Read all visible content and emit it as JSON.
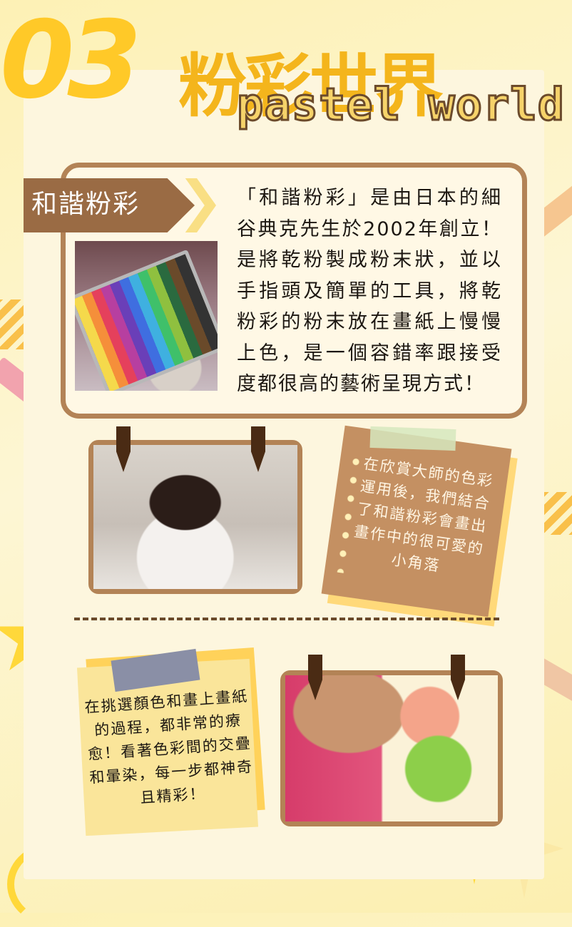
{
  "header": {
    "number": "03",
    "title_cjk": "粉彩世界",
    "title_en": "pastel world"
  },
  "intro": {
    "tag": "和諧粉彩",
    "text": "「和諧粉彩」是由日本的細谷典克先生於2002年創立！是將乾粉製成粉末狀，並以手指頭及簡單的工具，將乾粉彩的粉末放在畫紙上慢慢上色，是一個容錯率跟接受度都很高的藝術呈現方式！"
  },
  "note1": {
    "text": "在欣賞大師的色彩運用後，我們結合了和諧粉彩會畫出畫作中的很可愛的小角落"
  },
  "note2": {
    "text": "在挑選顏色和畫上畫紙的過程，都非常的療愈！看著色彩間的交疊和暈染，每一步都神奇且精彩！"
  },
  "colors": {
    "accent_yellow": "#ffc928",
    "frame_brown": "#b38356",
    "tag_brown": "#9a6b44"
  }
}
